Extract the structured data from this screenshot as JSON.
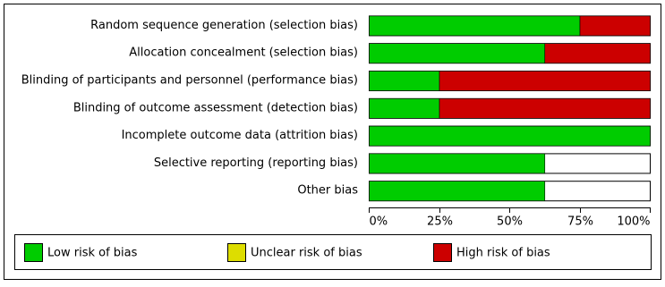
{
  "chart_data": {
    "type": "stacked-bar-horizontal",
    "categories": [
      "Random sequence generation (selection bias)",
      "Allocation concealment (selection bias)",
      "Blinding of participants and personnel (performance bias)",
      "Blinding of outcome assessment (detection bias)",
      "Incomplete outcome data (attrition bias)",
      "Selective reporting (reporting bias)",
      "Other bias"
    ],
    "series": [
      {
        "name": "Low risk of bias",
        "color": "#00cc00",
        "values": [
          75,
          62.5,
          25,
          25,
          100,
          62.5,
          62.5
        ]
      },
      {
        "name": "Unclear risk of bias",
        "color": "#dddd00",
        "values": [
          0,
          0,
          0,
          0,
          0,
          0,
          0
        ]
      },
      {
        "name": "High risk of bias",
        "color": "#cc0000",
        "values": [
          25,
          37.5,
          75,
          75,
          0,
          0,
          0
        ]
      }
    ],
    "xlim": [
      0,
      100
    ],
    "xticks": [
      {
        "value": 0,
        "label": "0%"
      },
      {
        "value": 25,
        "label": "25%"
      },
      {
        "value": 50,
        "label": "50%"
      },
      {
        "value": 75,
        "label": "75%"
      },
      {
        "value": 100,
        "label": "100%"
      }
    ]
  }
}
